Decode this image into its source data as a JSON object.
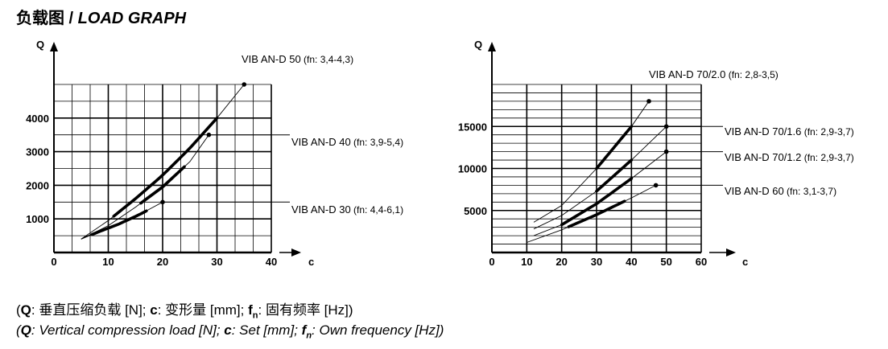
{
  "header": {
    "title_cn": "负载图",
    "title_sep": " / ",
    "title_en": "LOAD GRAPH"
  },
  "captions": {
    "cn": {
      "q_sym": "Q",
      "q_def": ": 垂直压缩负载 [N]; ",
      "c_sym": "c",
      "c_def": ": 变形量 [mm]; ",
      "f_sym": "f",
      "f_sub": "n",
      "f_def": ": 固有频率 [Hz])"
    },
    "en": {
      "q_sym": "Q",
      "q_def": ": Vertical compression load [N]; ",
      "c_sym": "c",
      "c_def": ": Set [mm]; ",
      "f_sym": "f",
      "f_sub": "n",
      "f_def": ": Own frequency [Hz])"
    }
  },
  "chart_data": [
    {
      "type": "line",
      "xlabel": "c",
      "ylabel": "Q",
      "xlim": [
        0,
        40
      ],
      "ylim": [
        0,
        5000
      ],
      "x_ticks": [
        "0",
        "10",
        "20",
        "30",
        "40"
      ],
      "y_ticks": [
        "1000",
        "2000",
        "3000",
        "4000"
      ],
      "grid": true,
      "series": [
        {
          "name": "VIB AN-D  50",
          "label_suffix": " (fn: 3,4-4,3)",
          "values": [
            [
              5,
              400
            ],
            [
              10,
              950
            ],
            [
              15,
              1600
            ],
            [
              20,
              2300
            ],
            [
              25,
              3100
            ],
            [
              30,
              4000
            ],
            [
              35,
              5000
            ]
          ],
          "bold_range": [
            11,
            30
          ],
          "marker": [
            35,
            5000
          ]
        },
        {
          "name": "VIB AN-D  40",
          "label_suffix": " (fn: 3,9-5,4)",
          "values": [
            [
              5,
              400
            ],
            [
              10,
              800
            ],
            [
              15,
              1350
            ],
            [
              20,
              1950
            ],
            [
              25,
              2700
            ],
            [
              28.5,
              3500
            ]
          ],
          "bold_range": [
            16,
            24
          ],
          "marker": [
            28.5,
            3500
          ]
        },
        {
          "name": "VIB AN-D  30",
          "label_suffix": " (fn: 4,4-6,1)",
          "values": [
            [
              5,
              400
            ],
            [
              8,
              600
            ],
            [
              12,
              850
            ],
            [
              16,
              1150
            ],
            [
              20,
              1500
            ]
          ],
          "bold_range": [
            7,
            17
          ],
          "marker": [
            20,
            1500
          ]
        }
      ]
    },
    {
      "type": "line",
      "xlabel": "c",
      "ylabel": "Q",
      "xlim": [
        0,
        60
      ],
      "ylim": [
        0,
        20000
      ],
      "x_ticks": [
        "0",
        "10",
        "20",
        "30",
        "40",
        "50",
        "60"
      ],
      "y_ticks": [
        "5000",
        "10000",
        "15000"
      ],
      "grid": true,
      "series": [
        {
          "name": "VIB AN-D  70/2.0",
          "label_suffix": " (fn: 2,8-3,5)",
          "values": [
            [
              12,
              3600
            ],
            [
              20,
              5600
            ],
            [
              30,
              10000
            ],
            [
              40,
              15000
            ],
            [
              45,
              18000
            ]
          ],
          "bold_range": [
            30,
            40
          ],
          "marker": [
            45,
            18000
          ]
        },
        {
          "name": "VIB AN-D  70/1.6",
          "label_suffix": " (fn: 2,9-3,7)",
          "values": [
            [
              12,
              2800
            ],
            [
              20,
              4400
            ],
            [
              30,
              7300
            ],
            [
              40,
              11000
            ],
            [
              50,
              15000
            ]
          ],
          "bold_range": [
            30,
            40
          ],
          "marker": [
            50,
            15000
          ]
        },
        {
          "name": "VIB AN-D  70/1.2",
          "label_suffix": " (fn: 2,9-3,7)",
          "values": [
            [
              12,
              2000
            ],
            [
              20,
              3300
            ],
            [
              30,
              5800
            ],
            [
              40,
              8800
            ],
            [
              50,
              12000
            ]
          ],
          "bold_range": [
            20,
            40
          ],
          "marker": [
            50,
            12000
          ]
        },
        {
          "name": "VIB AN-D  60",
          "label_suffix": " (fn: 3,1-3,7)",
          "values": [
            [
              10,
              1200
            ],
            [
              20,
              2700
            ],
            [
              30,
              4500
            ],
            [
              40,
              6500
            ],
            [
              47,
              8000
            ]
          ],
          "bold_range": [
            22,
            38
          ],
          "marker": [
            47,
            8000
          ]
        }
      ]
    }
  ]
}
